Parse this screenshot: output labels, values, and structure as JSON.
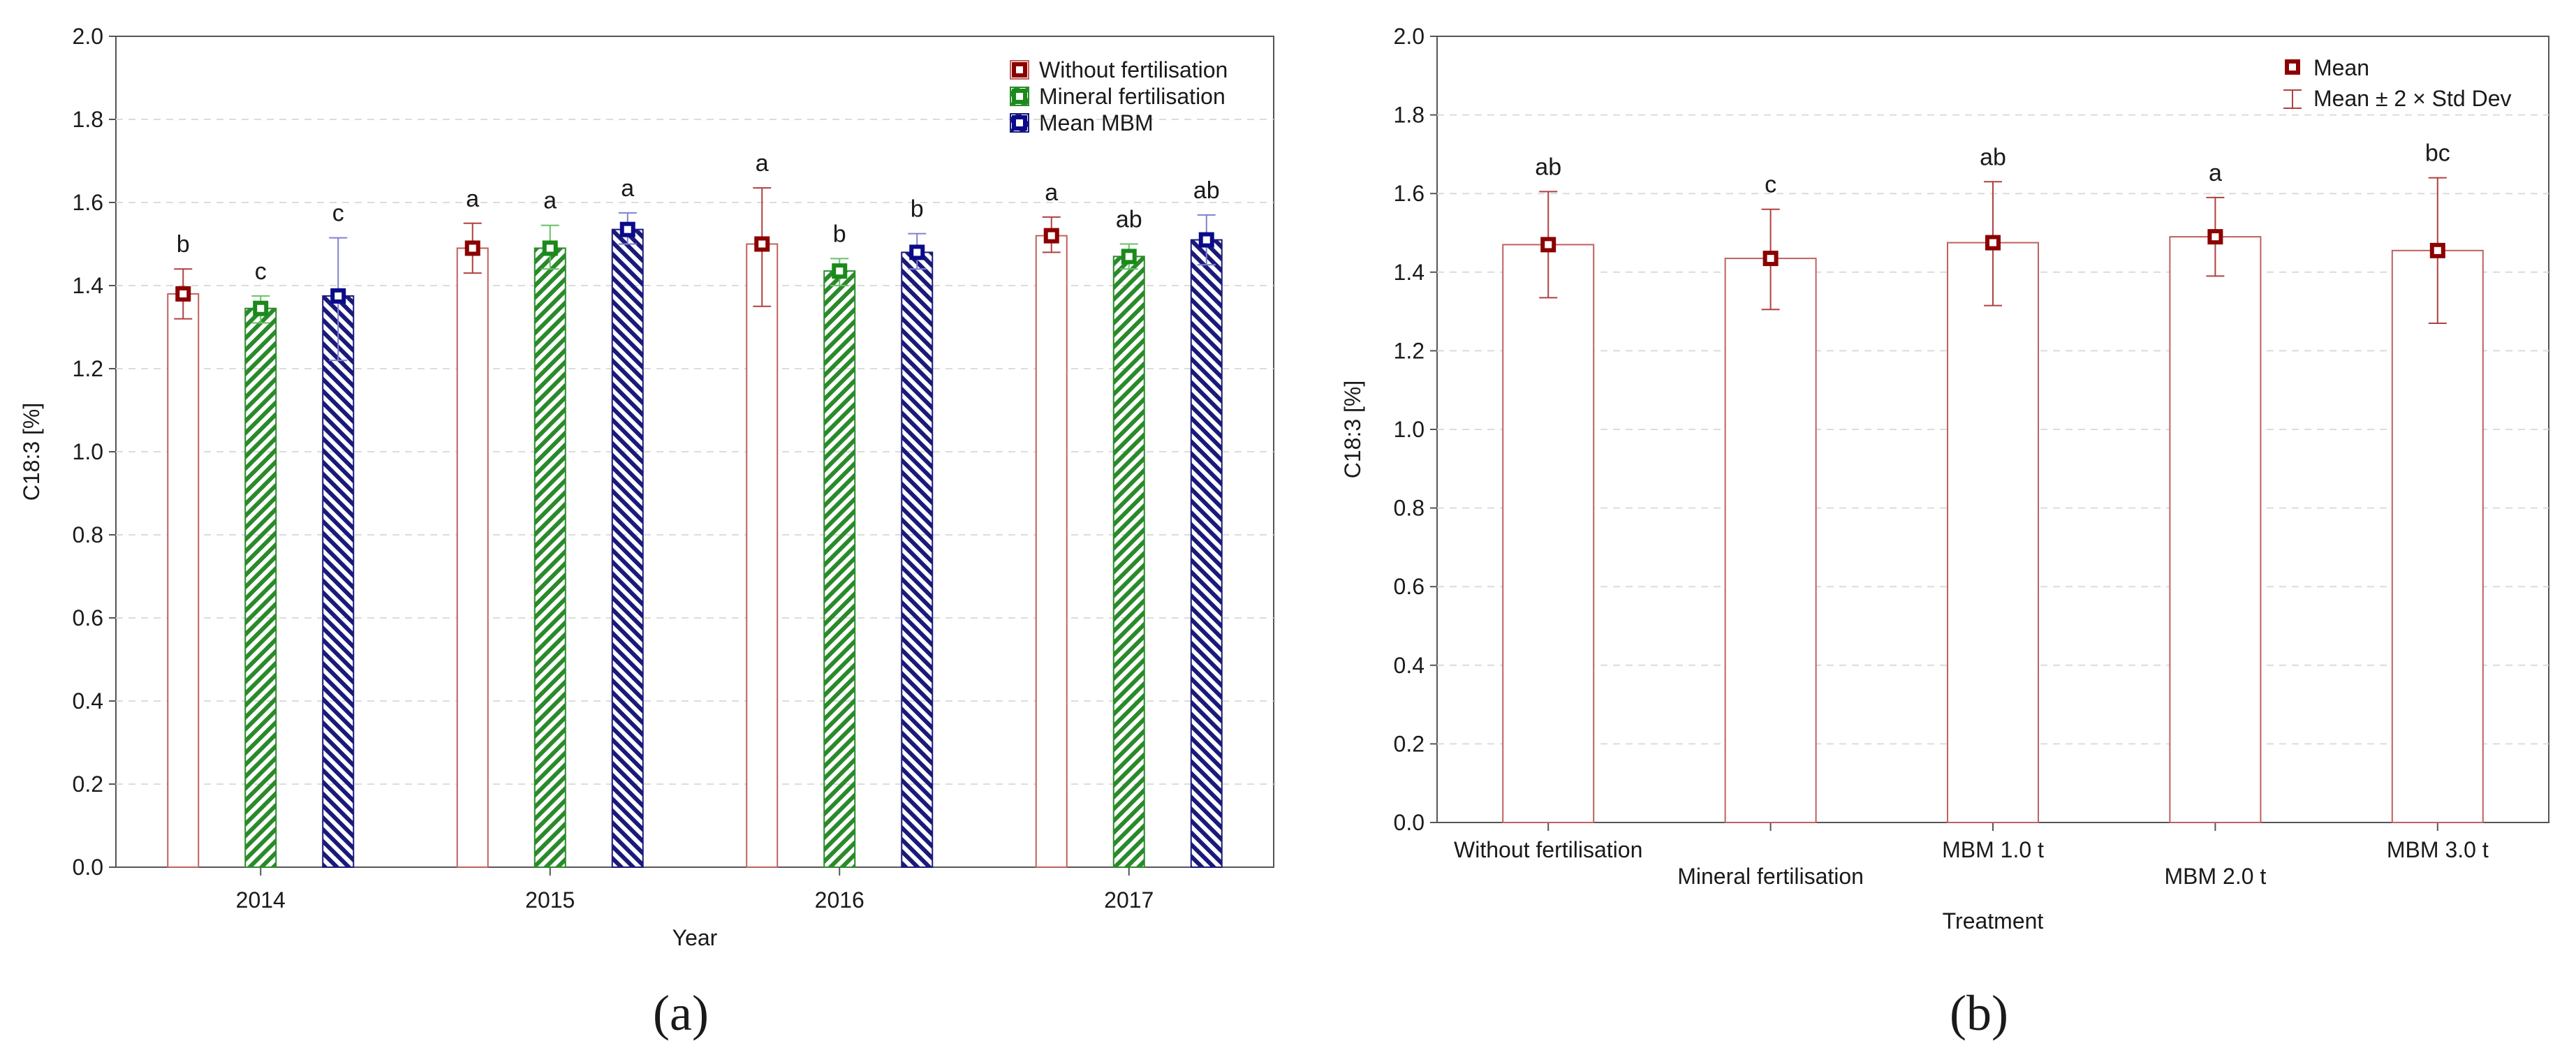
{
  "chart_data": [
    {
      "type": "bar",
      "panel_label": "(a)",
      "ylabel": "C18:3 [%]",
      "xlabel": "Year",
      "ylim": [
        0,
        2.0
      ],
      "yticks": [
        "0.0",
        "0.2",
        "0.4",
        "0.6",
        "0.8",
        "1.0",
        "1.2",
        "1.4",
        "1.6",
        "1.8",
        "2.0"
      ],
      "grid": "horizontal dashed",
      "legend_position": "top-right",
      "categories": [
        "2014",
        "2015",
        "2016",
        "2017"
      ],
      "series": [
        {
          "name": "Without fertilisation",
          "color": "#c06060",
          "marker_color": "#8b0000",
          "pattern": "none",
          "values": [
            1.38,
            1.49,
            1.5,
            1.52
          ],
          "err_low": [
            1.32,
            1.43,
            1.35,
            1.48
          ],
          "err_high": [
            1.44,
            1.55,
            1.635,
            1.565
          ],
          "letters": [
            "b",
            "a",
            "a",
            "a"
          ]
        },
        {
          "name": "Mineral fertilisation",
          "color": "#2a8a2a",
          "marker_color": "#1a8a1a",
          "pattern": "diagonal",
          "values": [
            1.345,
            1.49,
            1.435,
            1.47
          ],
          "err_low": [
            1.31,
            1.44,
            1.4,
            1.44
          ],
          "err_high": [
            1.375,
            1.545,
            1.465,
            1.5
          ],
          "letters": [
            "c",
            "a",
            "b",
            "ab"
          ]
        },
        {
          "name": "Mean MBM",
          "color": "#1a1a7a",
          "marker_color": "#0a0a8a",
          "pattern": "diagonal",
          "values": [
            1.375,
            1.535,
            1.48,
            1.51
          ],
          "err_low": [
            1.22,
            1.5,
            1.44,
            1.45
          ],
          "err_high": [
            1.515,
            1.575,
            1.525,
            1.57
          ],
          "letters": [
            "c",
            "a",
            "b",
            "ab"
          ]
        }
      ]
    },
    {
      "type": "bar",
      "panel_label": "(b)",
      "ylabel": "C18:3 [%]",
      "xlabel": "Treatment",
      "ylim": [
        0,
        2.0
      ],
      "yticks": [
        "0.0",
        "0.2",
        "0.4",
        "0.6",
        "0.8",
        "1.0",
        "1.2",
        "1.4",
        "1.6",
        "1.8",
        "2.0"
      ],
      "grid": "horizontal dashed",
      "legend_position": "top-right",
      "legend": [
        "Mean",
        "Mean ± 2 × Std Dev"
      ],
      "color": "#c06060",
      "marker_color": "#8b0000",
      "categories": [
        "Without fertilisation",
        "Mineral fertilisation",
        "MBM 1.0 t",
        "MBM 2.0 t",
        "MBM 3.0 t"
      ],
      "values": [
        1.47,
        1.435,
        1.475,
        1.49,
        1.455
      ],
      "err_low": [
        1.335,
        1.305,
        1.315,
        1.39,
        1.27
      ],
      "err_high": [
        1.605,
        1.56,
        1.63,
        1.59,
        1.64
      ],
      "letters": [
        "ab",
        "c",
        "ab",
        "a",
        "bc"
      ]
    }
  ]
}
